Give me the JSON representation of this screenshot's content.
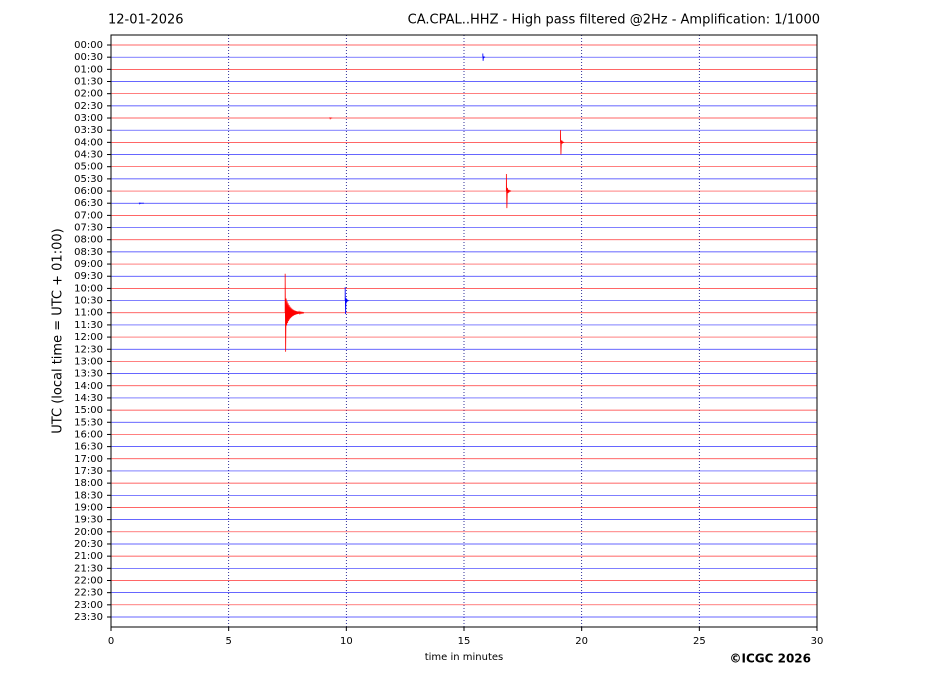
{
  "chart_data": {
    "type": "helicorder",
    "title_left": "12-01-2026",
    "title": "CA.CPAL..HHZ - High pass filtered @2Hz - Amplification: 1/1000",
    "ylabel": "UTC (local time = UTC + 01:00)",
    "xlabel": "time in minutes",
    "credit": "©ICGC 2026",
    "xlim": [
      0,
      30
    ],
    "xticks": [
      0,
      5,
      10,
      15,
      20,
      25,
      30
    ],
    "grid": true,
    "trace_colors": [
      "#ff0000",
      "#0000ff"
    ],
    "categories": [
      "00:00",
      "00:30",
      "01:00",
      "01:30",
      "02:00",
      "02:30",
      "03:00",
      "03:30",
      "04:00",
      "04:30",
      "05:00",
      "05:30",
      "06:00",
      "06:30",
      "07:00",
      "07:30",
      "08:00",
      "08:30",
      "09:00",
      "09:30",
      "10:00",
      "10:30",
      "11:00",
      "11:30",
      "12:00",
      "12:30",
      "13:00",
      "13:30",
      "14:00",
      "14:30",
      "15:00",
      "15:30",
      "16:00",
      "16:30",
      "17:00",
      "17:30",
      "18:00",
      "18:30",
      "19:00",
      "19:30",
      "20:00",
      "20:30",
      "21:00",
      "21:30",
      "22:00",
      "22:30",
      "23:00",
      "23:30"
    ],
    "events": [
      {
        "trace": 1,
        "x": 15.8,
        "amplitude": 0.3,
        "duration": 0.1
      },
      {
        "trace": 6,
        "x": 9.3,
        "amplitude": 0.05,
        "duration": 0.1
      },
      {
        "trace": 8,
        "x": 19.1,
        "amplitude": 1.0,
        "duration": 0.15
      },
      {
        "trace": 12,
        "x": 16.8,
        "amplitude": 1.4,
        "duration": 0.2
      },
      {
        "trace": 13,
        "x": 1.2,
        "amplitude": 0.05,
        "duration": 0.2
      },
      {
        "trace": 21,
        "x": 9.95,
        "amplitude": 1.1,
        "duration": 0.15
      },
      {
        "trace": 22,
        "x": 7.4,
        "amplitude": 3.2,
        "duration": 0.8
      }
    ]
  }
}
